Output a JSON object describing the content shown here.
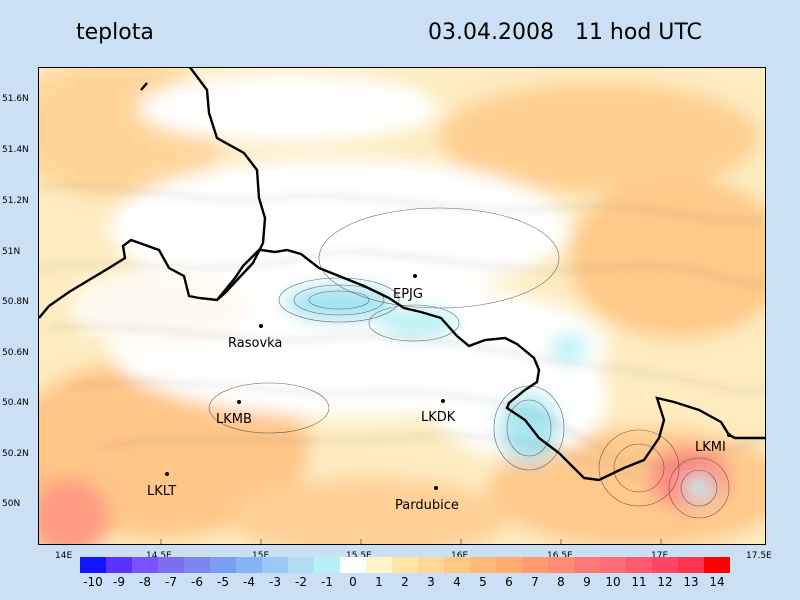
{
  "header": {
    "title": "teplota",
    "datetime": "03.04.2008   11 hod UTC"
  },
  "map": {
    "latitude_labels": [
      "51.6N",
      "51.4N",
      "51.2N",
      "51N",
      "50.8N",
      "50.6N",
      "50.4N",
      "50.2N",
      "50N"
    ],
    "longitude_labels": [
      "14E",
      "14.5E",
      "15E",
      "15.5E",
      "16E",
      "16.5E",
      "17E",
      "17.5E"
    ],
    "stations": [
      {
        "name": "EPJG",
        "label": "EPJG"
      },
      {
        "name": "Rasovka",
        "label": "Rasovka"
      },
      {
        "name": "LKMB",
        "label": "LKMB"
      },
      {
        "name": "LKDK",
        "label": "LKDK"
      },
      {
        "name": "LKMI",
        "label": "LKMI"
      },
      {
        "name": "LKLT",
        "label": "LKLT"
      },
      {
        "name": "Pardubice",
        "label": "Pardubice"
      }
    ]
  },
  "legend": {
    "labels": [
      "-10",
      "-9",
      "-8",
      "-7",
      "-6",
      "-5",
      "-4",
      "-3",
      "-2",
      "-1",
      "0",
      "1",
      "2",
      "3",
      "4",
      "5",
      "6",
      "7",
      "8",
      "9",
      "10",
      "11",
      "12",
      "13",
      "14"
    ],
    "colors": [
      "#1414ff",
      "#5a32ff",
      "#7b52ff",
      "#7d6ef0",
      "#7b86f0",
      "#7b9ff0",
      "#84b4f5",
      "#9bc8f5",
      "#b4dcf5",
      "#b4f0f5",
      "#ffffff",
      "#fff5c8",
      "#ffe6a5",
      "#ffd796",
      "#ffc882",
      "#ffb978",
      "#ffaa6e",
      "#ff9b6e",
      "#ff8c73",
      "#ff7878",
      "#ff6e78",
      "#ff5a6e",
      "#ff4664",
      "#ff3250",
      "#ff0000"
    ]
  }
}
